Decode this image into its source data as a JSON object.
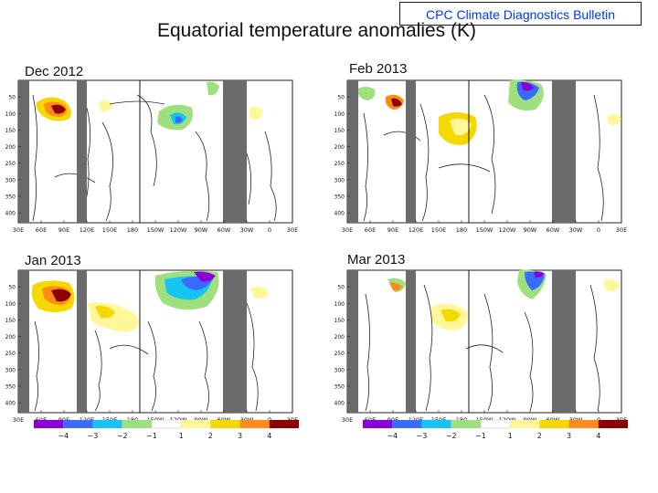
{
  "badge": "CPC Climate Diagnostics Bulletin",
  "title": "Equatorial temperature anomalies (K)",
  "panels": [
    {
      "label": "Dec 2012"
    },
    {
      "label": "Feb 2013"
    },
    {
      "label": "Jan 2013"
    },
    {
      "label": "Mar 2013"
    }
  ],
  "y_ticks": [
    "50",
    "100",
    "150",
    "200",
    "250",
    "300",
    "350",
    "400"
  ],
  "x_ticks": [
    "30E",
    "60E",
    "90E",
    "120E",
    "150E",
    "180",
    "150W",
    "120W",
    "90W",
    "60W",
    "30W",
    "0",
    "30E"
  ],
  "colorbar": {
    "colors": [
      "#8a00d8",
      "#3a6bff",
      "#16c4f2",
      "#9ee07e",
      "#ffffff",
      "#fff79a",
      "#f5d800",
      "#ff8b1a",
      "#8b0000"
    ],
    "labels": [
      "−4",
      "−3",
      "−2",
      "−1",
      "1",
      "2",
      "3",
      "4"
    ]
  },
  "colors": {
    "land_gray": "#6b6b6b",
    "title_badge_text": "#0033ff"
  }
}
